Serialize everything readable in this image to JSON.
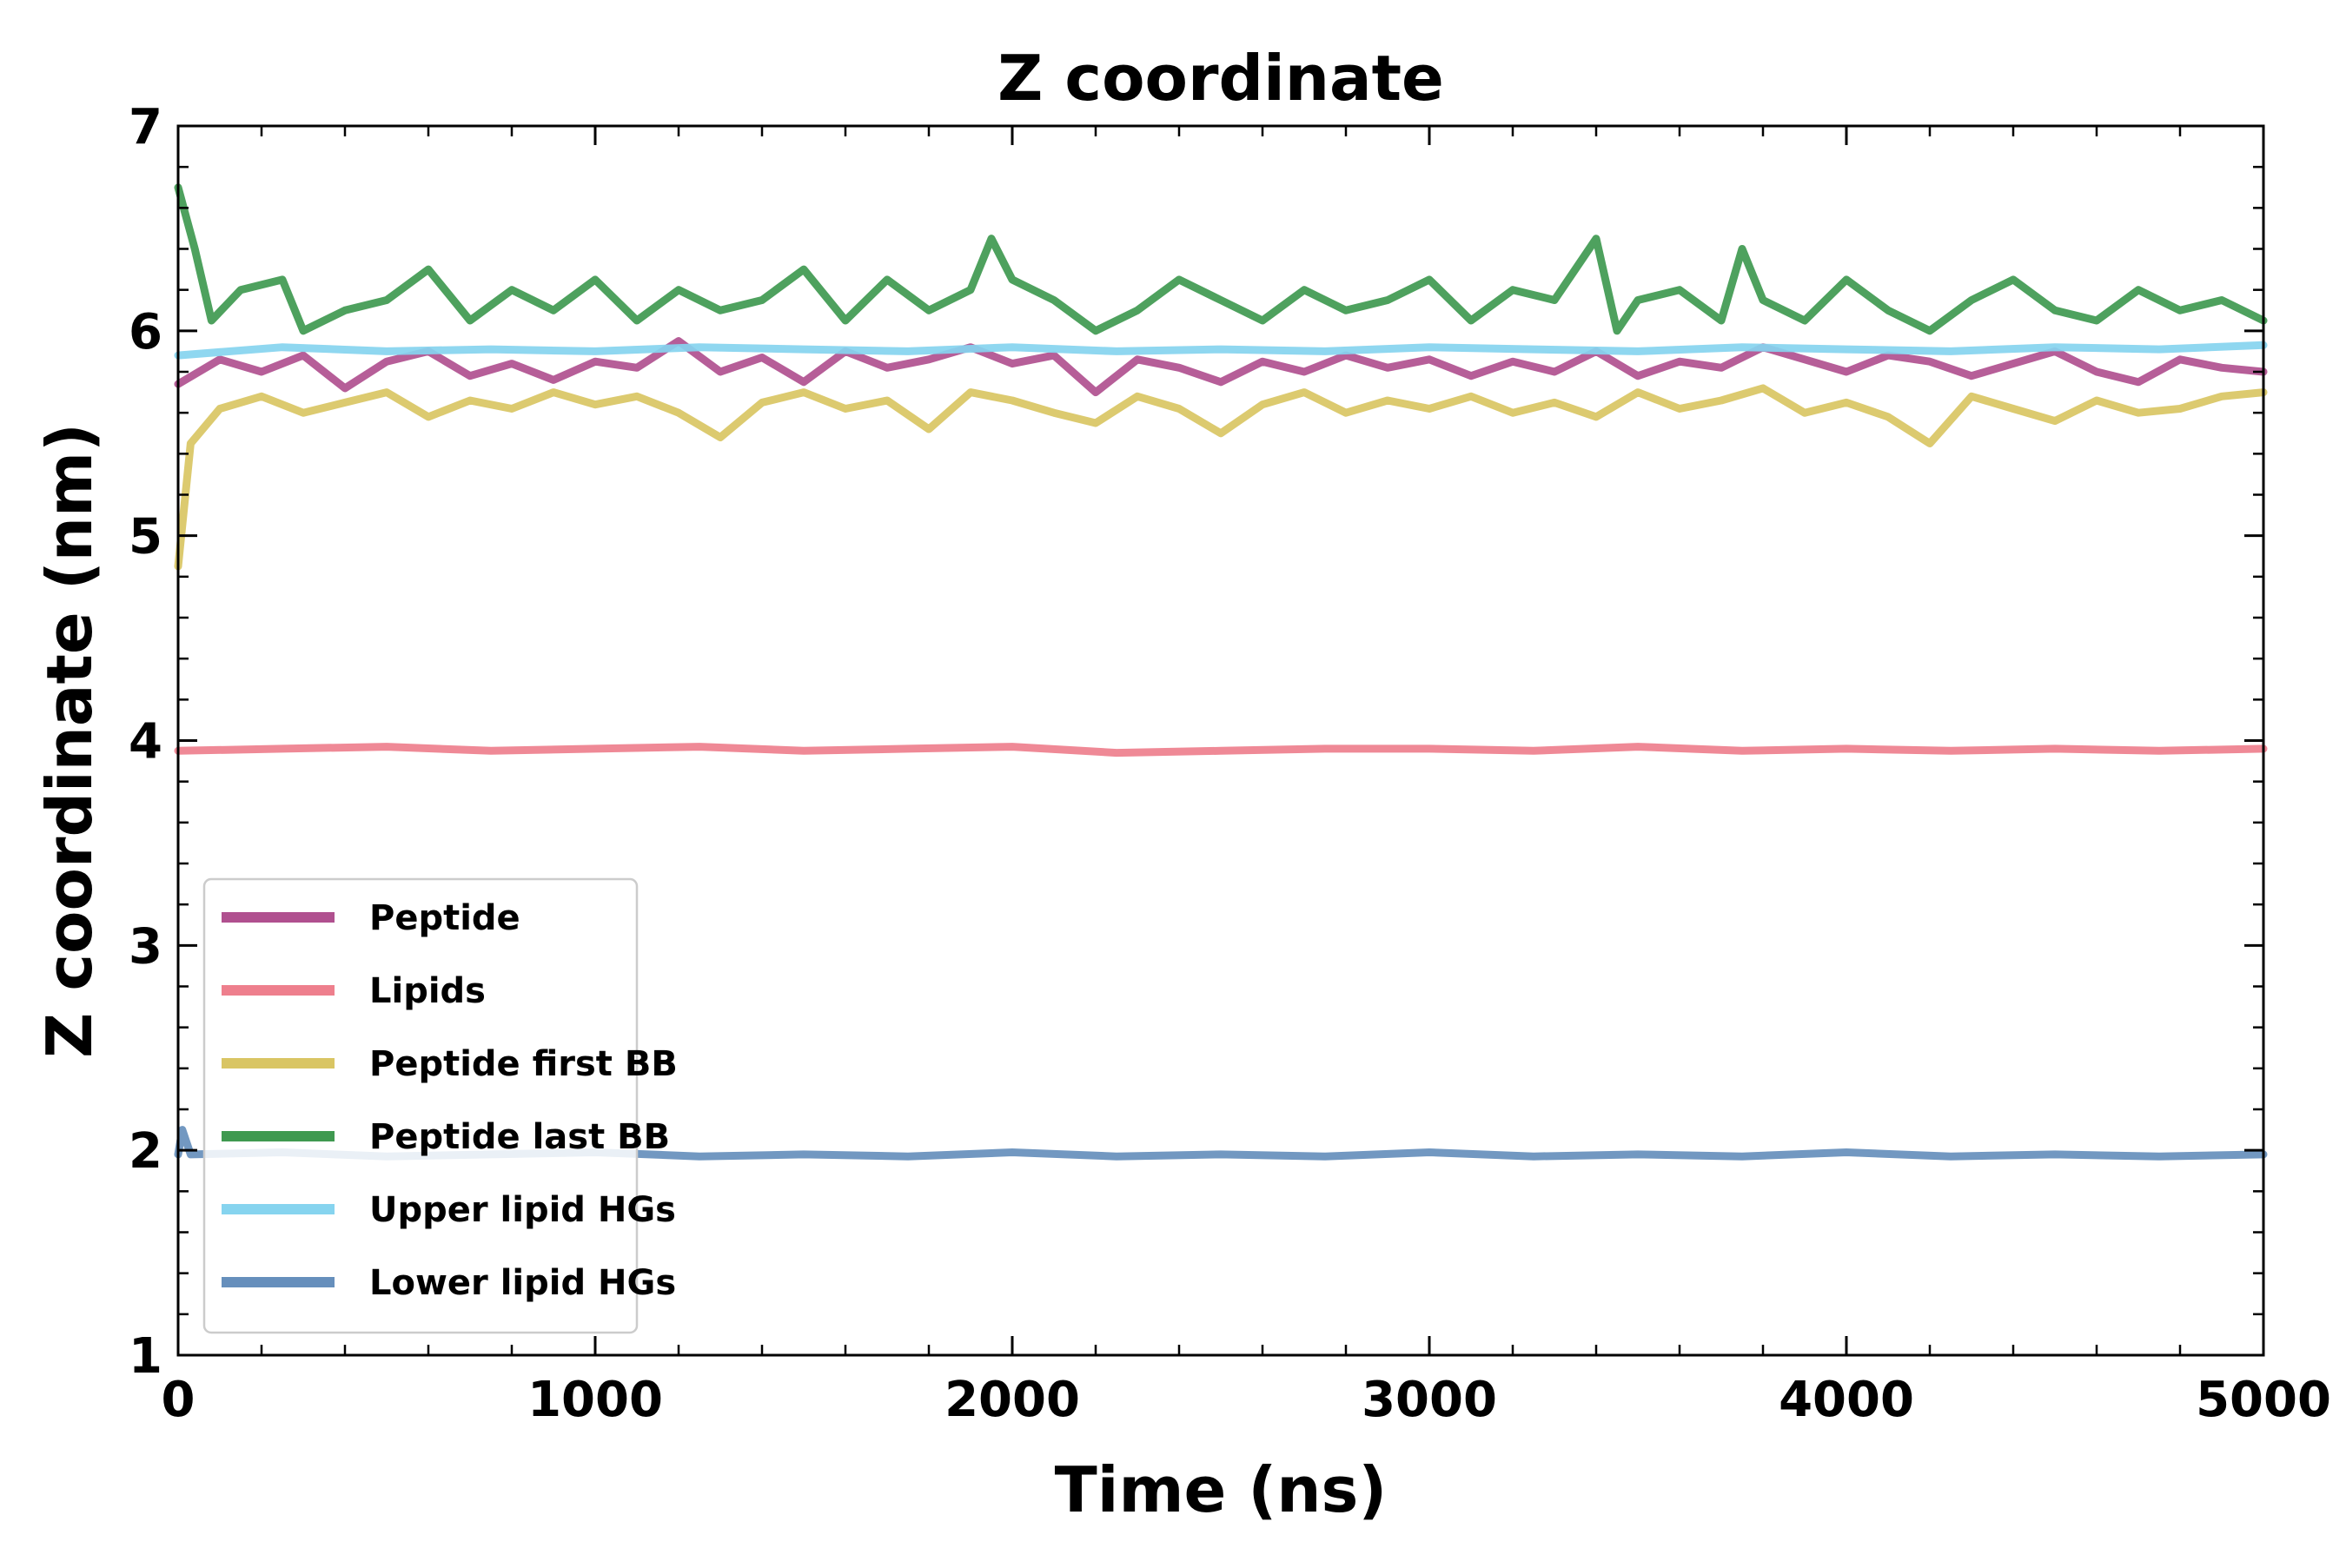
{
  "chart_data": {
    "type": "line",
    "title": "Z coordinate",
    "xlabel": "Time (ns)",
    "ylabel": "Z coordinate (nm)",
    "xlim": [
      0,
      5000
    ],
    "ylim": [
      1,
      7
    ],
    "x_ticks": [
      "0",
      "1000",
      "2000",
      "3000",
      "4000",
      "5000"
    ],
    "y_ticks": [
      "1",
      "2",
      "3",
      "4",
      "5",
      "6",
      "7"
    ],
    "grid": false,
    "legend_position": "lower-left",
    "series": [
      {
        "name": "Peptide",
        "color": "#b0508f",
        "points": [
          [
            0,
            5.74
          ],
          [
            100,
            5.86
          ],
          [
            200,
            5.8
          ],
          [
            300,
            5.88
          ],
          [
            400,
            5.72
          ],
          [
            500,
            5.85
          ],
          [
            600,
            5.9
          ],
          [
            700,
            5.78
          ],
          [
            800,
            5.84
          ],
          [
            900,
            5.76
          ],
          [
            1000,
            5.85
          ],
          [
            1100,
            5.82
          ],
          [
            1200,
            5.95
          ],
          [
            1300,
            5.8
          ],
          [
            1400,
            5.87
          ],
          [
            1500,
            5.75
          ],
          [
            1600,
            5.9
          ],
          [
            1700,
            5.82
          ],
          [
            1800,
            5.86
          ],
          [
            1900,
            5.92
          ],
          [
            2000,
            5.84
          ],
          [
            2100,
            5.88
          ],
          [
            2200,
            5.7
          ],
          [
            2300,
            5.86
          ],
          [
            2400,
            5.82
          ],
          [
            2500,
            5.75
          ],
          [
            2600,
            5.85
          ],
          [
            2700,
            5.8
          ],
          [
            2800,
            5.88
          ],
          [
            2900,
            5.82
          ],
          [
            3000,
            5.86
          ],
          [
            3100,
            5.78
          ],
          [
            3200,
            5.85
          ],
          [
            3300,
            5.8
          ],
          [
            3400,
            5.9
          ],
          [
            3500,
            5.78
          ],
          [
            3600,
            5.85
          ],
          [
            3700,
            5.82
          ],
          [
            3800,
            5.92
          ],
          [
            3900,
            5.86
          ],
          [
            4000,
            5.8
          ],
          [
            4100,
            5.88
          ],
          [
            4200,
            5.85
          ],
          [
            4300,
            5.78
          ],
          [
            4400,
            5.84
          ],
          [
            4500,
            5.9
          ],
          [
            4600,
            5.8
          ],
          [
            4700,
            5.75
          ],
          [
            4800,
            5.86
          ],
          [
            4900,
            5.82
          ],
          [
            5000,
            5.8
          ]
        ]
      },
      {
        "name": "Lipids",
        "color": "#ee7f8d",
        "points": [
          [
            0,
            3.95
          ],
          [
            250,
            3.96
          ],
          [
            500,
            3.97
          ],
          [
            750,
            3.95
          ],
          [
            1000,
            3.96
          ],
          [
            1250,
            3.97
          ],
          [
            1500,
            3.95
          ],
          [
            1750,
            3.96
          ],
          [
            2000,
            3.97
          ],
          [
            2250,
            3.94
          ],
          [
            2500,
            3.95
          ],
          [
            2750,
            3.96
          ],
          [
            3000,
            3.96
          ],
          [
            3250,
            3.95
          ],
          [
            3500,
            3.97
          ],
          [
            3750,
            3.95
          ],
          [
            4000,
            3.96
          ],
          [
            4250,
            3.95
          ],
          [
            4500,
            3.96
          ],
          [
            4750,
            3.95
          ],
          [
            5000,
            3.96
          ]
        ]
      },
      {
        "name": "Peptide first BB",
        "color": "#d9c563",
        "points": [
          [
            0,
            4.85
          ],
          [
            30,
            5.45
          ],
          [
            100,
            5.62
          ],
          [
            200,
            5.68
          ],
          [
            300,
            5.6
          ],
          [
            400,
            5.65
          ],
          [
            500,
            5.7
          ],
          [
            600,
            5.58
          ],
          [
            700,
            5.66
          ],
          [
            800,
            5.62
          ],
          [
            900,
            5.7
          ],
          [
            1000,
            5.64
          ],
          [
            1100,
            5.68
          ],
          [
            1200,
            5.6
          ],
          [
            1300,
            5.48
          ],
          [
            1400,
            5.65
          ],
          [
            1500,
            5.7
          ],
          [
            1600,
            5.62
          ],
          [
            1700,
            5.66
          ],
          [
            1800,
            5.52
          ],
          [
            1900,
            5.7
          ],
          [
            2000,
            5.66
          ],
          [
            2100,
            5.6
          ],
          [
            2200,
            5.55
          ],
          [
            2300,
            5.68
          ],
          [
            2400,
            5.62
          ],
          [
            2500,
            5.5
          ],
          [
            2600,
            5.64
          ],
          [
            2700,
            5.7
          ],
          [
            2800,
            5.6
          ],
          [
            2900,
            5.66
          ],
          [
            3000,
            5.62
          ],
          [
            3100,
            5.68
          ],
          [
            3200,
            5.6
          ],
          [
            3300,
            5.65
          ],
          [
            3400,
            5.58
          ],
          [
            3500,
            5.7
          ],
          [
            3600,
            5.62
          ],
          [
            3700,
            5.66
          ],
          [
            3800,
            5.72
          ],
          [
            3900,
            5.6
          ],
          [
            4000,
            5.65
          ],
          [
            4100,
            5.58
          ],
          [
            4200,
            5.45
          ],
          [
            4300,
            5.68
          ],
          [
            4400,
            5.62
          ],
          [
            4500,
            5.56
          ],
          [
            4600,
            5.66
          ],
          [
            4700,
            5.6
          ],
          [
            4800,
            5.62
          ],
          [
            4900,
            5.68
          ],
          [
            5000,
            5.7
          ]
        ]
      },
      {
        "name": "Peptide last BB",
        "color": "#3f9950",
        "points": [
          [
            0,
            6.7
          ],
          [
            40,
            6.4
          ],
          [
            80,
            6.05
          ],
          [
            150,
            6.2
          ],
          [
            250,
            6.25
          ],
          [
            300,
            6.0
          ],
          [
            400,
            6.1
          ],
          [
            500,
            6.15
          ],
          [
            600,
            6.3
          ],
          [
            700,
            6.05
          ],
          [
            800,
            6.2
          ],
          [
            900,
            6.1
          ],
          [
            1000,
            6.25
          ],
          [
            1100,
            6.05
          ],
          [
            1200,
            6.2
          ],
          [
            1300,
            6.1
          ],
          [
            1400,
            6.15
          ],
          [
            1500,
            6.3
          ],
          [
            1600,
            6.05
          ],
          [
            1700,
            6.25
          ],
          [
            1800,
            6.1
          ],
          [
            1900,
            6.2
          ],
          [
            1950,
            6.45
          ],
          [
            2000,
            6.25
          ],
          [
            2100,
            6.15
          ],
          [
            2200,
            6.0
          ],
          [
            2300,
            6.1
          ],
          [
            2400,
            6.25
          ],
          [
            2500,
            6.15
          ],
          [
            2600,
            6.05
          ],
          [
            2700,
            6.2
          ],
          [
            2800,
            6.1
          ],
          [
            2900,
            6.15
          ],
          [
            3000,
            6.25
          ],
          [
            3100,
            6.05
          ],
          [
            3200,
            6.2
          ],
          [
            3300,
            6.15
          ],
          [
            3400,
            6.45
          ],
          [
            3450,
            6.0
          ],
          [
            3500,
            6.15
          ],
          [
            3600,
            6.2
          ],
          [
            3700,
            6.05
          ],
          [
            3750,
            6.4
          ],
          [
            3800,
            6.15
          ],
          [
            3900,
            6.05
          ],
          [
            4000,
            6.25
          ],
          [
            4100,
            6.1
          ],
          [
            4200,
            6.0
          ],
          [
            4300,
            6.15
          ],
          [
            4400,
            6.25
          ],
          [
            4500,
            6.1
          ],
          [
            4600,
            6.05
          ],
          [
            4700,
            6.2
          ],
          [
            4800,
            6.1
          ],
          [
            4900,
            6.15
          ],
          [
            5000,
            6.05
          ]
        ]
      },
      {
        "name": "Upper lipid HGs",
        "color": "#86d4ef",
        "points": [
          [
            0,
            5.88
          ],
          [
            250,
            5.92
          ],
          [
            500,
            5.9
          ],
          [
            750,
            5.91
          ],
          [
            1000,
            5.9
          ],
          [
            1250,
            5.92
          ],
          [
            1500,
            5.91
          ],
          [
            1750,
            5.9
          ],
          [
            2000,
            5.92
          ],
          [
            2250,
            5.9
          ],
          [
            2500,
            5.91
          ],
          [
            2750,
            5.9
          ],
          [
            3000,
            5.92
          ],
          [
            3250,
            5.91
          ],
          [
            3500,
            5.9
          ],
          [
            3750,
            5.92
          ],
          [
            4000,
            5.91
          ],
          [
            4250,
            5.9
          ],
          [
            4500,
            5.92
          ],
          [
            4750,
            5.91
          ],
          [
            5000,
            5.93
          ]
        ]
      },
      {
        "name": "Lower lipid HGs",
        "color": "#668fbc",
        "points": [
          [
            0,
            1.98
          ],
          [
            10,
            2.1
          ],
          [
            30,
            1.98
          ],
          [
            250,
            1.99
          ],
          [
            500,
            1.97
          ],
          [
            750,
            1.98
          ],
          [
            1000,
            1.99
          ],
          [
            1250,
            1.97
          ],
          [
            1500,
            1.98
          ],
          [
            1750,
            1.97
          ],
          [
            2000,
            1.99
          ],
          [
            2250,
            1.97
          ],
          [
            2500,
            1.98
          ],
          [
            2750,
            1.97
          ],
          [
            3000,
            1.99
          ],
          [
            3250,
            1.97
          ],
          [
            3500,
            1.98
          ],
          [
            3750,
            1.97
          ],
          [
            4000,
            1.99
          ],
          [
            4250,
            1.97
          ],
          [
            4500,
            1.98
          ],
          [
            4750,
            1.97
          ],
          [
            5000,
            1.98
          ]
        ]
      }
    ]
  }
}
